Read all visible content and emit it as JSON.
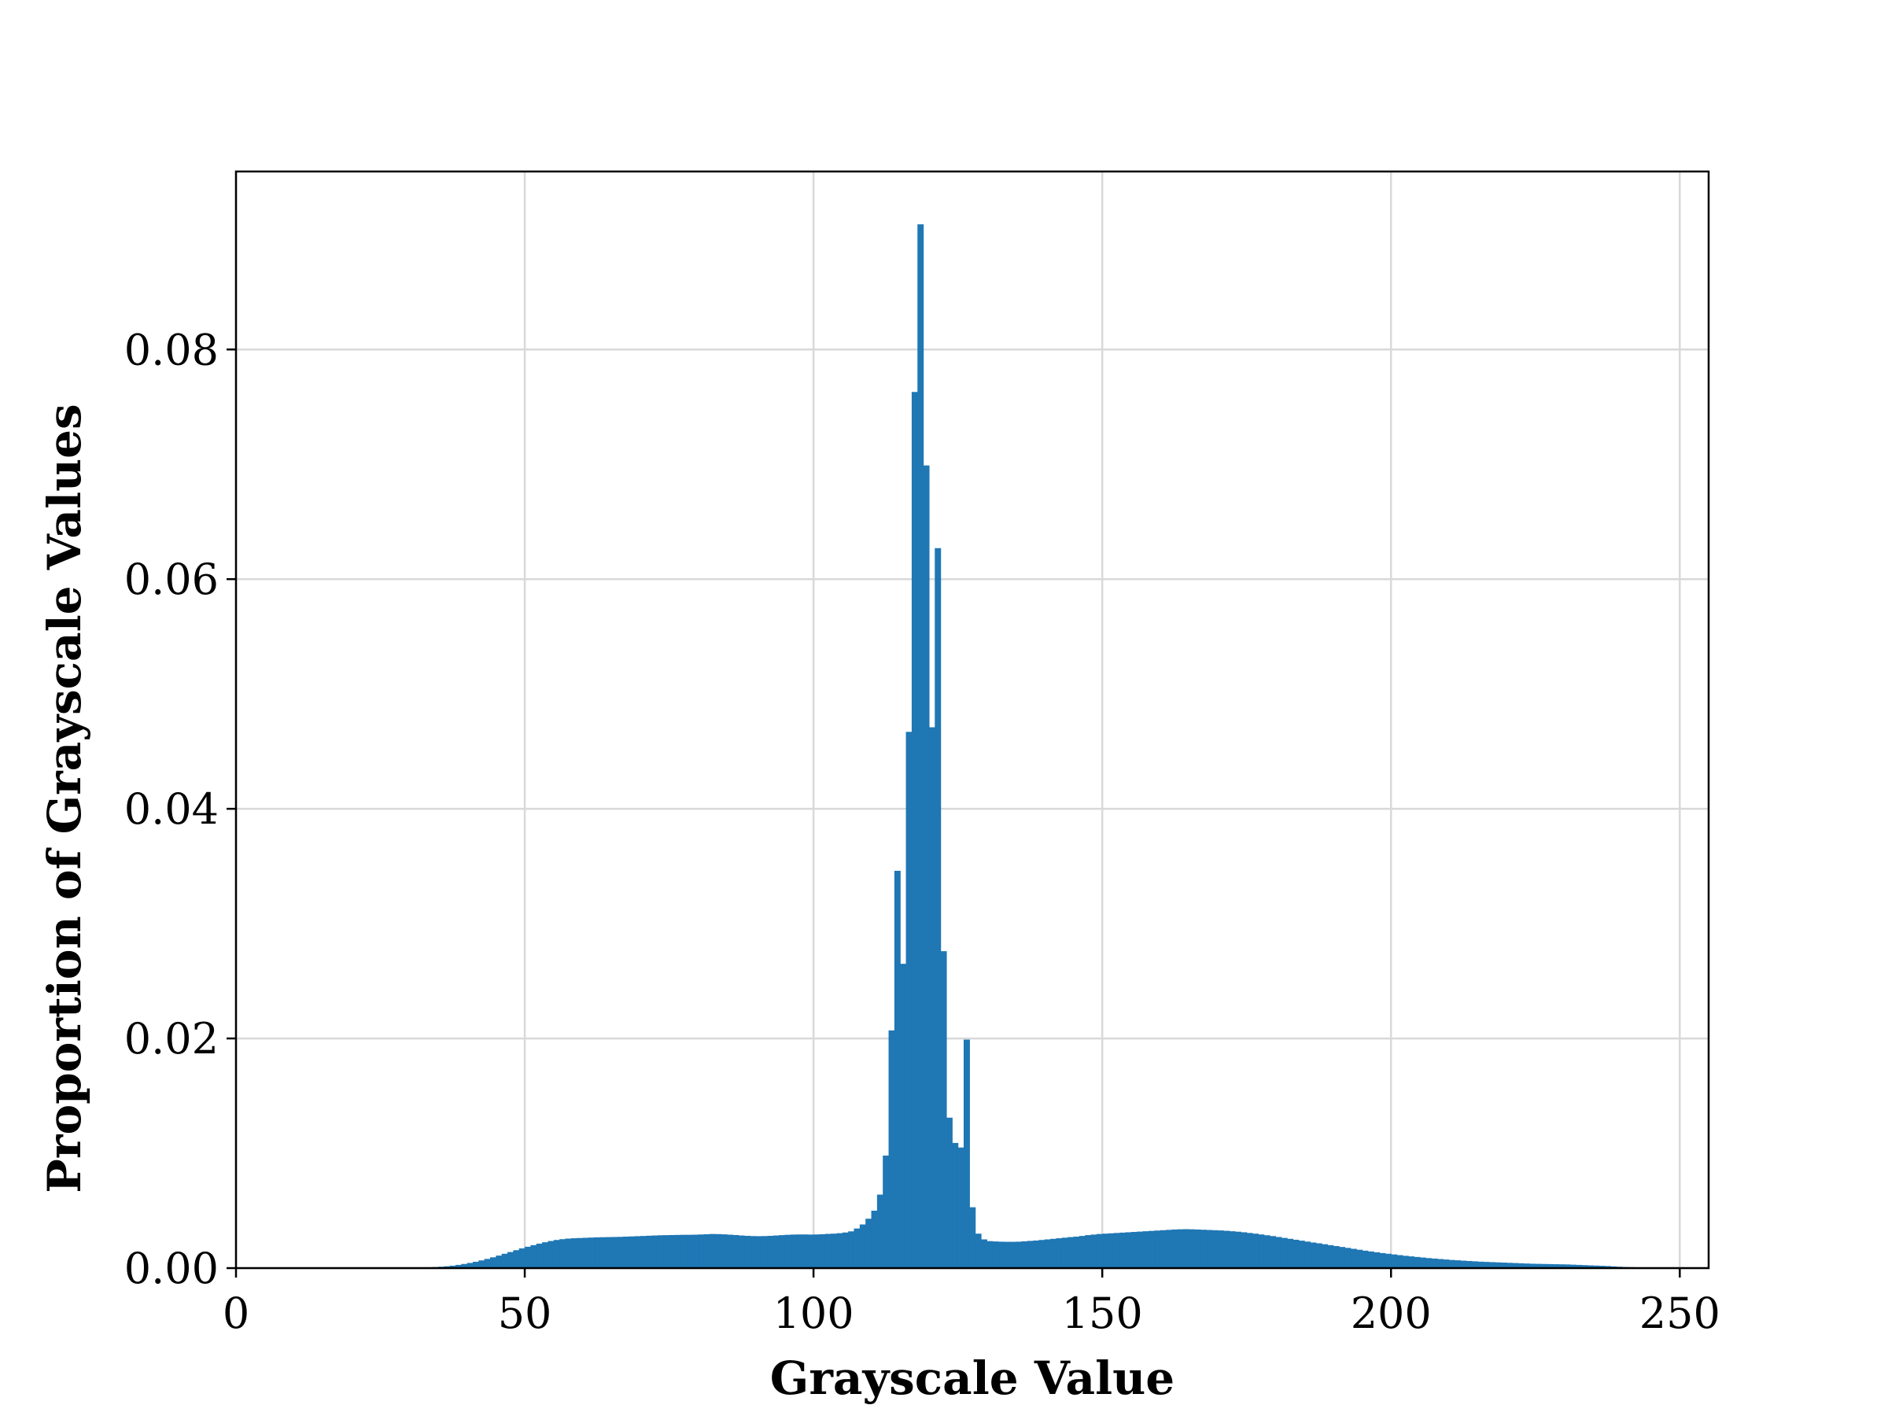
{
  "chart_data": {
    "type": "bar",
    "title": "",
    "xlabel": "Grayscale Value",
    "ylabel": "Proportion of Grayscale Values",
    "xlim": [
      0,
      255
    ],
    "ylim": [
      0,
      0.0955
    ],
    "grid": true,
    "bar_color": "#1f77b4",
    "bin_width": 1,
    "x_ticks": [
      0,
      50,
      100,
      150,
      200,
      250
    ],
    "x_tick_labels": [
      "0",
      "50",
      "100",
      "150",
      "200",
      "250"
    ],
    "y_ticks": [
      0,
      0.02,
      0.04,
      0.06,
      0.08
    ],
    "y_tick_labels": [
      "0.00",
      "0.02",
      "0.04",
      "0.06",
      "0.08"
    ],
    "series": [
      {
        "x": [
          0,
          1,
          2,
          3,
          4,
          5,
          6,
          7,
          8,
          9,
          10,
          11,
          12,
          13,
          14,
          15,
          16,
          17,
          18,
          19,
          20,
          21,
          22,
          23,
          24,
          25,
          26,
          27,
          28,
          29,
          30,
          31,
          32,
          33,
          34,
          35,
          36,
          37,
          38,
          39,
          40,
          41,
          42,
          43,
          44,
          45,
          46,
          47,
          48,
          49,
          50,
          51,
          52,
          53,
          54,
          55,
          56,
          57,
          58,
          59,
          60,
          61,
          62,
          63,
          64,
          65,
          66,
          67,
          68,
          69,
          70,
          71,
          72,
          73,
          74,
          75,
          76,
          77,
          78,
          79,
          80,
          81,
          82,
          83,
          84,
          85,
          86,
          87,
          88,
          89,
          90,
          91,
          92,
          93,
          94,
          95,
          96,
          97,
          98,
          99,
          100,
          101,
          102,
          103,
          104,
          105,
          106,
          107,
          108,
          109,
          110,
          111,
          112,
          113,
          114,
          115,
          116,
          117,
          118,
          119,
          120,
          121,
          122,
          123,
          124,
          125,
          126,
          127,
          128,
          129,
          130,
          131,
          132,
          133,
          134,
          135,
          136,
          137,
          138,
          139,
          140,
          141,
          142,
          143,
          144,
          145,
          146,
          147,
          148,
          149,
          150,
          151,
          152,
          153,
          154,
          155,
          156,
          157,
          158,
          159,
          160,
          161,
          162,
          163,
          164,
          165,
          166,
          167,
          168,
          169,
          170,
          171,
          172,
          173,
          174,
          175,
          176,
          177,
          178,
          179,
          180,
          181,
          182,
          183,
          184,
          185,
          186,
          187,
          188,
          189,
          190,
          191,
          192,
          193,
          194,
          195,
          196,
          197,
          198,
          199,
          200,
          201,
          202,
          203,
          204,
          205,
          206,
          207,
          208,
          209,
          210,
          211,
          212,
          213,
          214,
          215,
          216,
          217,
          218,
          219,
          220,
          221,
          222,
          223,
          224,
          225,
          226,
          227,
          228,
          229,
          230,
          231,
          232,
          233,
          234,
          235,
          236,
          237,
          238,
          239,
          240,
          241,
          242,
          243,
          244,
          245,
          246,
          247,
          248,
          249,
          250,
          251,
          252,
          253,
          254,
          255
        ],
        "values": [
          0,
          0,
          0,
          0,
          0,
          0,
          0,
          0,
          0,
          0,
          0,
          0,
          0,
          0,
          0,
          0,
          0,
          0,
          0,
          0,
          0,
          0,
          0,
          0,
          0,
          0,
          0,
          0,
          0,
          0,
          3e-05,
          4e-05,
          5e-05,
          7e-05,
          9e-05,
          0.00012,
          0.00016,
          0.00021,
          0.00028,
          0.00036,
          0.00045,
          0.00055,
          0.00067,
          0.0008,
          0.00094,
          0.00109,
          0.00125,
          0.0014,
          0.00156,
          0.00172,
          0.00186,
          0.002,
          0.00213,
          0.00225,
          0.00236,
          0.00245,
          0.00252,
          0.00257,
          0.0026,
          0.00262,
          0.00264,
          0.00266,
          0.00268,
          0.00269,
          0.0027,
          0.00271,
          0.00272,
          0.00274,
          0.00276,
          0.00278,
          0.0028,
          0.00282,
          0.00284,
          0.00286,
          0.00287,
          0.00288,
          0.00289,
          0.0029,
          0.0029,
          0.00291,
          0.00293,
          0.00295,
          0.00297,
          0.00296,
          0.00294,
          0.00291,
          0.00288,
          0.00284,
          0.00281,
          0.00279,
          0.00278,
          0.00279,
          0.00281,
          0.00284,
          0.00287,
          0.0029,
          0.00292,
          0.00293,
          0.00293,
          0.00292,
          0.00293,
          0.00295,
          0.00298,
          0.003,
          0.00304,
          0.0031,
          0.0032,
          0.00345,
          0.0038,
          0.0043,
          0.005,
          0.0064,
          0.0098,
          0.0207,
          0.0346,
          0.0265,
          0.0467,
          0.0763,
          0.0909,
          0.0699,
          0.0471,
          0.0627,
          0.0276,
          0.0131,
          0.0109,
          0.0105,
          0.0199,
          0.0053,
          0.003,
          0.0025,
          0.00235,
          0.00232,
          0.0023,
          0.00229,
          0.00229,
          0.0023,
          0.00233,
          0.00237,
          0.0024,
          0.00245,
          0.0025,
          0.00255,
          0.0026,
          0.00265,
          0.0027,
          0.00274,
          0.0028,
          0.00287,
          0.00292,
          0.00297,
          0.003,
          0.00303,
          0.00306,
          0.00309,
          0.00312,
          0.00315,
          0.00318,
          0.00321,
          0.00324,
          0.00327,
          0.0033,
          0.00333,
          0.00336,
          0.00338,
          0.00339,
          0.00338,
          0.00336,
          0.00334,
          0.00332,
          0.0033,
          0.00328,
          0.00325,
          0.00321,
          0.00317,
          0.00312,
          0.00306,
          0.003,
          0.00293,
          0.00286,
          0.00279,
          0.00271,
          0.00263,
          0.00255,
          0.00247,
          0.00239,
          0.00231,
          0.00223,
          0.00216,
          0.00208,
          0.002,
          0.00192,
          0.00184,
          0.00176,
          0.00168,
          0.0016,
          0.00152,
          0.00145,
          0.00138,
          0.00131,
          0.00125,
          0.00119,
          0.00113,
          0.00107,
          0.00102,
          0.00097,
          0.00092,
          0.00087,
          0.00083,
          0.00079,
          0.00075,
          0.00071,
          0.00068,
          0.00065,
          0.00062,
          0.00059,
          0.00056,
          0.00054,
          0.00052,
          0.0005,
          0.00048,
          0.00046,
          0.00044,
          0.00042,
          0.0004,
          0.00038,
          0.00037,
          0.00036,
          0.00035,
          0.00034,
          0.00033,
          0.00032,
          0.0003,
          0.00028,
          0.00026,
          0.00024,
          0.00022,
          0.0002,
          0.00018,
          0.00015,
          0.00012,
          0.0001,
          8e-05,
          6e-05,
          4e-05,
          3e-05,
          2e-05,
          1e-05,
          0,
          0,
          0,
          0,
          0,
          0,
          0,
          0,
          0
        ]
      }
    ]
  }
}
